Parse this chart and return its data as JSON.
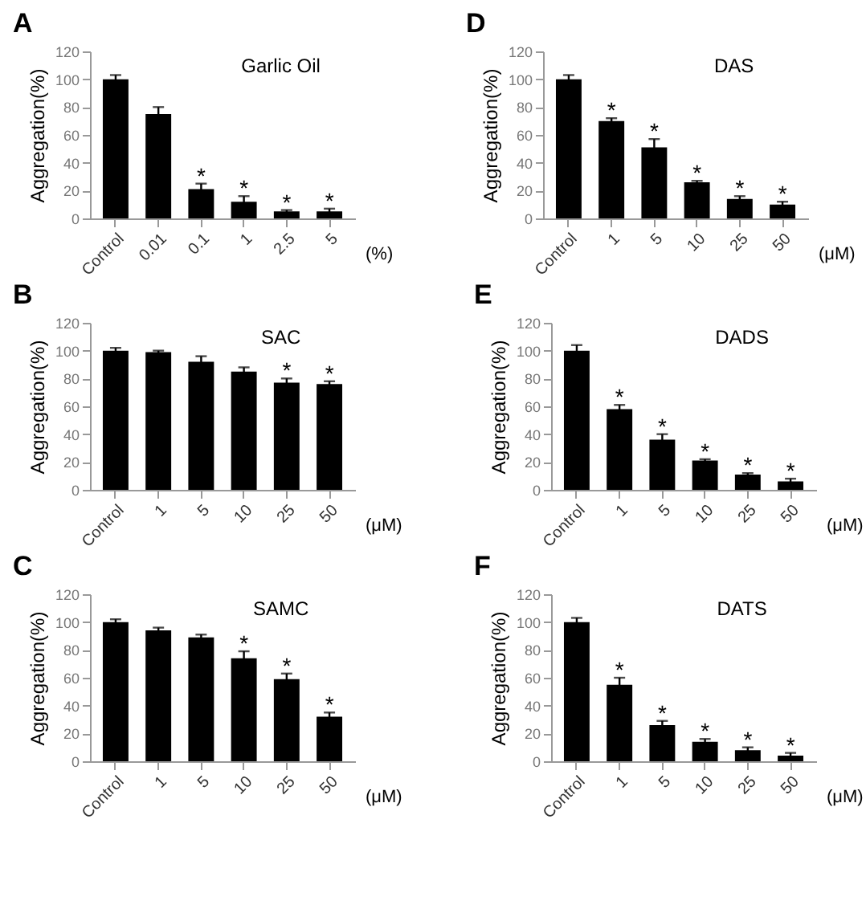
{
  "chart_data": [
    {
      "type": "bar",
      "title": "A",
      "ylabel": "Aggregation(%)",
      "xlabel": "(%)",
      "categories": [
        "Control",
        "0.01",
        "0.1",
        "1",
        "2.5",
        "5"
      ],
      "values": [
        100,
        75,
        21,
        12,
        5,
        5
      ],
      "errors": [
        3,
        5,
        4,
        4,
        1,
        2
      ],
      "color": "#000000",
      "ylim": [
        0,
        120
      ],
      "yticks": [
        0,
        20,
        40,
        60,
        80,
        100,
        120
      ],
      "grid": false,
      "annotations": [
        "Garlic Oil",
        {
          "text": "*",
          "x": "0.1",
          "y": 25
        },
        {
          "text": "*",
          "x": "1",
          "y": 16
        },
        {
          "text": "*",
          "x": "2.5",
          "y": 6
        },
        {
          "text": "*",
          "x": "5",
          "y": 7
        }
      ]
    },
    {
      "type": "bar",
      "title": "D",
      "ylabel": "Aggregation(%)",
      "xlabel": "(μM)",
      "categories": [
        "Control",
        "1",
        "5",
        "10",
        "25",
        "50"
      ],
      "values": [
        100,
        70,
        51,
        26,
        14,
        10
      ],
      "errors": [
        3,
        2,
        6,
        1,
        2,
        2
      ],
      "color": "#000000",
      "ylim": [
        0,
        120
      ],
      "yticks": [
        0,
        20,
        40,
        60,
        80,
        100,
        120
      ],
      "grid": false,
      "annotations": [
        "DAS",
        {
          "text": "*",
          "x": "1",
          "y": 72
        },
        {
          "text": "*",
          "x": "5",
          "y": 57
        },
        {
          "text": "*",
          "x": "10",
          "y": 27
        },
        {
          "text": "*",
          "x": "25",
          "y": 16
        },
        {
          "text": "*",
          "x": "50",
          "y": 12
        }
      ]
    },
    {
      "type": "bar",
      "title": "B",
      "ylabel": "Aggregation(%)",
      "xlabel": "(μM)",
      "categories": [
        "Control",
        "1",
        "5",
        "10",
        "25",
        "50"
      ],
      "values": [
        100,
        99,
        92,
        85,
        77,
        76
      ],
      "errors": [
        2,
        1,
        4,
        3,
        3,
        2
      ],
      "color": "#000000",
      "ylim": [
        0,
        120
      ],
      "yticks": [
        0,
        20,
        40,
        60,
        80,
        100,
        120
      ],
      "grid": false,
      "annotations": [
        "SAC",
        {
          "text": "*",
          "x": "25",
          "y": 80
        },
        {
          "text": "*",
          "x": "50",
          "y": 78
        }
      ]
    },
    {
      "type": "bar",
      "title": "E",
      "ylabel": "Aggregation(%)",
      "xlabel": "(μM)",
      "categories": [
        "Control",
        "1",
        "5",
        "10",
        "25",
        "50"
      ],
      "values": [
        100,
        58,
        36,
        21,
        11,
        6
      ],
      "errors": [
        4,
        3,
        4,
        1,
        1,
        2
      ],
      "color": "#000000",
      "ylim": [
        0,
        120
      ],
      "yticks": [
        0,
        20,
        40,
        60,
        80,
        100,
        120
      ],
      "grid": false,
      "annotations": [
        "DADS",
        {
          "text": "*",
          "x": "1",
          "y": 61
        },
        {
          "text": "*",
          "x": "5",
          "y": 40
        },
        {
          "text": "*",
          "x": "10",
          "y": 22
        },
        {
          "text": "*",
          "x": "25",
          "y": 12
        },
        {
          "text": "*",
          "x": "50",
          "y": 8
        }
      ]
    },
    {
      "type": "bar",
      "title": "C",
      "ylabel": "Aggregation(%)",
      "xlabel": "(μM)",
      "categories": [
        "Control",
        "1",
        "5",
        "10",
        "25",
        "50"
      ],
      "values": [
        100,
        94,
        89,
        74,
        59,
        32
      ],
      "errors": [
        2,
        2,
        2,
        5,
        4,
        3
      ],
      "color": "#000000",
      "ylim": [
        0,
        120
      ],
      "yticks": [
        0,
        20,
        40,
        60,
        80,
        100,
        120
      ],
      "grid": false,
      "annotations": [
        "SAMC",
        {
          "text": "*",
          "x": "10",
          "y": 79
        },
        {
          "text": "*",
          "x": "25",
          "y": 63
        },
        {
          "text": "*",
          "x": "50",
          "y": 35
        }
      ]
    },
    {
      "type": "bar",
      "title": "F",
      "ylabel": "Aggregation(%)",
      "xlabel": "(μM)",
      "categories": [
        "Control",
        "1",
        "5",
        "10",
        "25",
        "50"
      ],
      "values": [
        100,
        55,
        26,
        14,
        8,
        4
      ],
      "errors": [
        3,
        5,
        3,
        2,
        2,
        2
      ],
      "color": "#000000",
      "ylim": [
        0,
        120
      ],
      "yticks": [
        0,
        20,
        40,
        60,
        80,
        100,
        120
      ],
      "grid": false,
      "annotations": [
        "DATS",
        {
          "text": "*",
          "x": "1",
          "y": 60
        },
        {
          "text": "*",
          "x": "5",
          "y": 29
        },
        {
          "text": "*",
          "x": "10",
          "y": 16
        },
        {
          "text": "*",
          "x": "25",
          "y": 10
        },
        {
          "text": "*",
          "x": "50",
          "y": 6
        }
      ]
    }
  ]
}
